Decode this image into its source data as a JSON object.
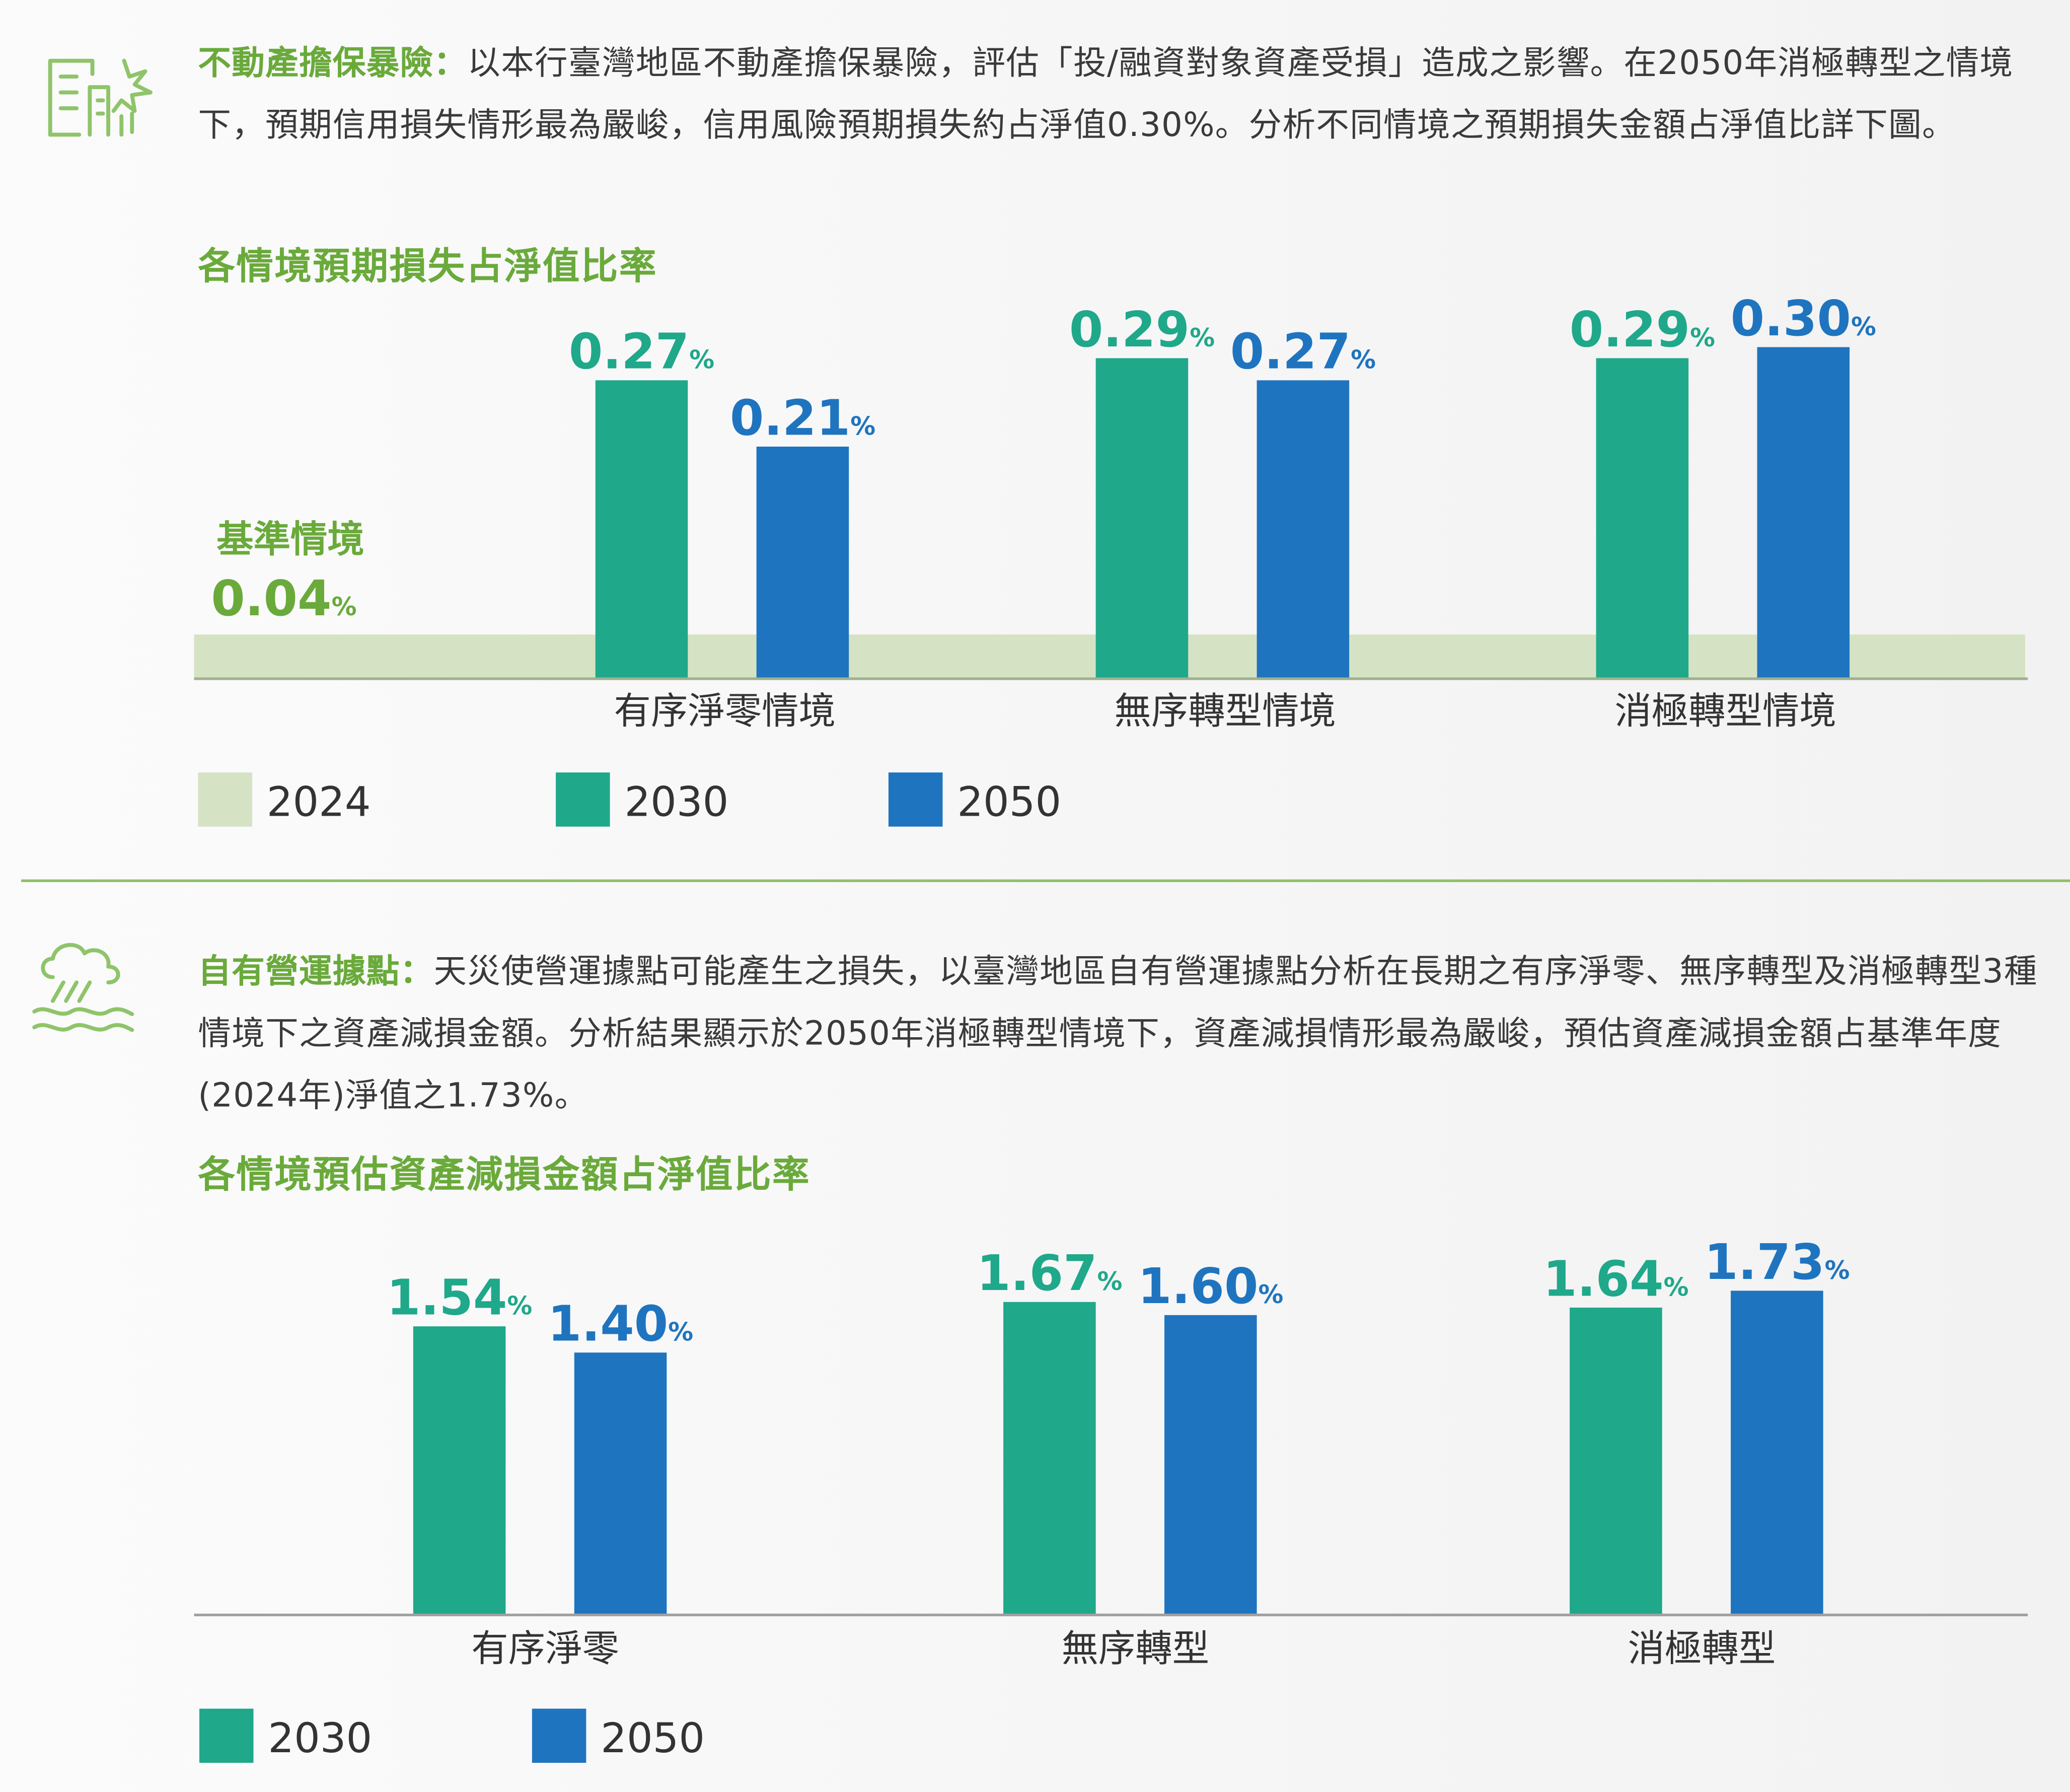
{
  "section1": {
    "lead": "不動產擔保暴險：",
    "text": "以本行臺灣地區不動產擔保暴險，評估「投/融資對象資產受損」造成之影響。在2050年消極轉型之情境下，預期信用損失情形最為嚴峻，信用風險預期損失約占淨值0.30%。分析不同情境之預期損失金額占淨值比詳下圖。",
    "icon": "building-storm-icon"
  },
  "section2": {
    "lead": "自有營運據點：",
    "text": "天災使營運據點可能產生之損失，以臺灣地區自有營運據點分析在長期之有序淨零、無序轉型及消極轉型3種情境下之資產減損金額。分析結果顯示於2050年消極轉型情境下，資產減損情形最為嚴峻，預估資產減損金額占基準年度(2024年)淨值之1.73%。",
    "icon": "cloud-rain-flood-icon"
  },
  "chart_data": [
    {
      "type": "bar",
      "title": "各情境預期損失占淨值比率",
      "unit": "%",
      "categories": [
        "有序淨零情境",
        "無序轉型情境",
        "消極轉型情境"
      ],
      "baseline": {
        "label": "基準情境",
        "name": "2024",
        "value": 0.04,
        "display": "0.04"
      },
      "series": [
        {
          "name": "2030",
          "values": [
            0.27,
            0.29,
            0.29
          ],
          "labels": [
            "0.27",
            "0.29",
            "0.29"
          ],
          "color": "#1fa88a"
        },
        {
          "name": "2050",
          "values": [
            0.21,
            0.27,
            0.3
          ],
          "labels": [
            "0.21",
            "0.27",
            "0.30"
          ],
          "color": "#1f74bf"
        }
      ],
      "legend": [
        "2024",
        "2030",
        "2050"
      ],
      "baseline_color": "#d5e3c4",
      "ylim": [
        0,
        0.32
      ]
    },
    {
      "type": "bar",
      "title": "各情境預估資產減損金額占淨值比率",
      "unit": "%",
      "categories": [
        "有序淨零",
        "無序轉型",
        "消極轉型"
      ],
      "series": [
        {
          "name": "2030",
          "values": [
            1.54,
            1.67,
            1.64
          ],
          "labels": [
            "1.54",
            "1.67",
            "1.64"
          ],
          "color": "#1fa88a"
        },
        {
          "name": "2050",
          "values": [
            1.4,
            1.6,
            1.73
          ],
          "labels": [
            "1.40",
            "1.60",
            "1.73"
          ],
          "color": "#1f74bf"
        }
      ],
      "legend": [
        "2030",
        "2050"
      ],
      "ylim": [
        0,
        1.84
      ]
    }
  ]
}
